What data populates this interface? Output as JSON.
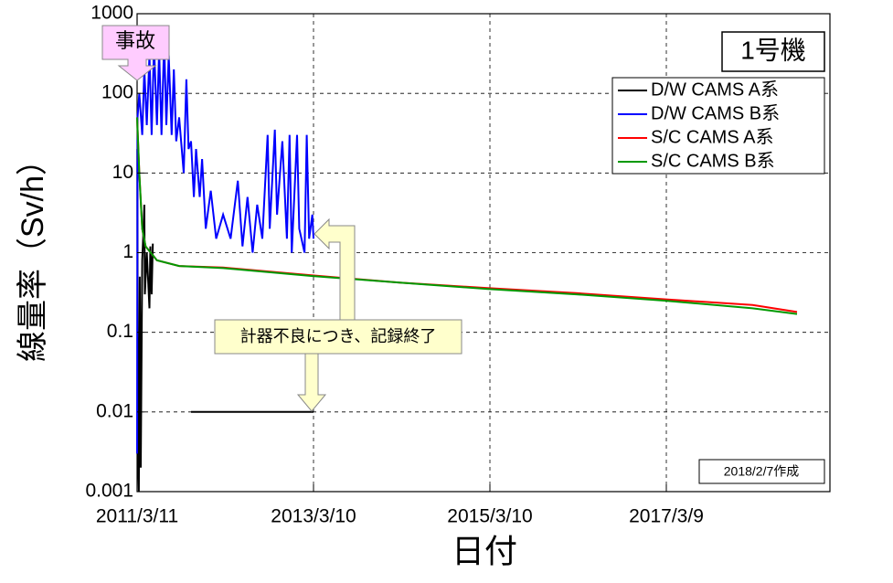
{
  "chart_data": {
    "type": "line",
    "yscale": "log",
    "grid": true,
    "legend": "upper right",
    "unit_label": "1号機",
    "note": "2018/2/7作成",
    "annotations": [
      "事故",
      "計器不良につき、記録終了"
    ],
    "xlabel": "日付",
    "ylabel": "線量率（Sv/h）",
    "xlim": [
      "2011/3/11",
      "2019/1/15"
    ],
    "xticks": [
      "2011/3/11",
      "2013/3/10",
      "2015/3/10",
      "2017/3/9"
    ],
    "ylim": [
      0.001,
      1000
    ],
    "yticks": [
      0.001,
      0.01,
      0.1,
      1,
      10,
      100,
      1000
    ],
    "series": [
      {
        "name": "D/W CAMS A系",
        "color": "#000000",
        "x": [
          "2011/3/12",
          "2011/3/14",
          "2011/3/18",
          "2011/3/22",
          "2011/3/26",
          "2011/4/1",
          "2011/4/5",
          "2011/4/10",
          "2011/4/12",
          "2011/4/20",
          "2011/4/25",
          "2011/5/1",
          "2011/5/5",
          "2011/5/10",
          "2011/5/15",
          "2011/8/1",
          "2011/10/20",
          "2013/3/10"
        ],
        "values": [
          20,
          0.003,
          0.001,
          0.5,
          0.002,
          0.8,
          1.5,
          4,
          0.3,
          1,
          0.5,
          0.2,
          1.2,
          0.3,
          1.3,
          null,
          0.01,
          0.01
        ]
      },
      {
        "name": "D/W CAMS B系",
        "color": "#0000ff",
        "x": [
          "2011/3/11",
          "2011/3/13",
          "2011/3/20",
          "2011/4/1",
          "2011/4/10",
          "2011/4/20",
          "2011/5/1",
          "2011/5/10",
          "2011/5/20",
          "2011/6/1",
          "2011/6/10",
          "2011/6/20",
          "2011/7/1",
          "2011/7/10",
          "2011/7/20",
          "2011/8/1",
          "2011/8/10",
          "2011/8/20",
          "2011/9/1",
          "2011/9/20",
          "2011/10/1",
          "2011/10/10",
          "2011/10/20",
          "2011/11/1",
          "2011/11/10",
          "2011/11/25",
          "2011/12/5",
          "2011/12/20",
          "2012/1/10",
          "2012/2/1",
          "2012/3/1",
          "2012/4/1",
          "2012/5/1",
          "2012/5/20",
          "2012/6/10",
          "2012/7/1",
          "2012/7/20",
          "2012/8/10",
          "2012/9/1",
          "2012/9/10",
          "2012/10/1",
          "2012/10/10",
          "2012/11/1",
          "2012/11/20",
          "2012/12/1",
          "2012/12/10",
          "2013/1/1",
          "2013/1/10",
          "2013/2/1",
          "2013/2/10",
          "2013/2/20",
          "2013/3/5",
          "2013/3/10"
        ],
        "values": [
          0.003,
          50,
          100,
          30,
          200,
          40,
          300,
          30,
          400,
          40,
          350,
          30,
          450,
          40,
          300,
          30,
          200,
          25,
          50,
          10,
          150,
          20,
          25,
          5,
          20,
          5,
          15,
          2,
          6,
          1.5,
          3,
          1.5,
          8,
          1.2,
          5,
          1,
          4,
          1.5,
          30,
          2,
          35,
          3,
          25,
          1.5,
          30,
          1,
          30,
          2,
          1,
          30,
          1.5,
          3,
          1.5
        ]
      },
      {
        "name": "S/C CAMS A系",
        "color": "#ff0000",
        "x": [
          "2011/3/11",
          "2011/3/20",
          "2011/4/1",
          "2011/4/15",
          "2011/6/1",
          "2011/9/1",
          "2012/3/1",
          "2013/3/1",
          "2014/3/1",
          "2015/3/1",
          "2016/3/1",
          "2017/3/1",
          "2018/3/1",
          "2018/9/1"
        ],
        "values": [
          50,
          10,
          2,
          1.2,
          0.8,
          0.68,
          0.65,
          0.52,
          0.42,
          0.36,
          0.31,
          0.26,
          0.22,
          0.18
        ]
      },
      {
        "name": "S/C CAMS B系",
        "color": "#009900",
        "x": [
          "2011/3/11",
          "2011/3/20",
          "2011/4/1",
          "2011/4/15",
          "2011/6/1",
          "2011/9/1",
          "2012/3/1",
          "2013/3/1",
          "2014/3/1",
          "2015/3/1",
          "2016/3/1",
          "2017/3/1",
          "2018/3/1",
          "2018/9/1"
        ],
        "values": [
          50,
          10,
          2,
          1.2,
          0.8,
          0.68,
          0.64,
          0.51,
          0.42,
          0.35,
          0.3,
          0.25,
          0.2,
          0.17
        ]
      }
    ]
  }
}
